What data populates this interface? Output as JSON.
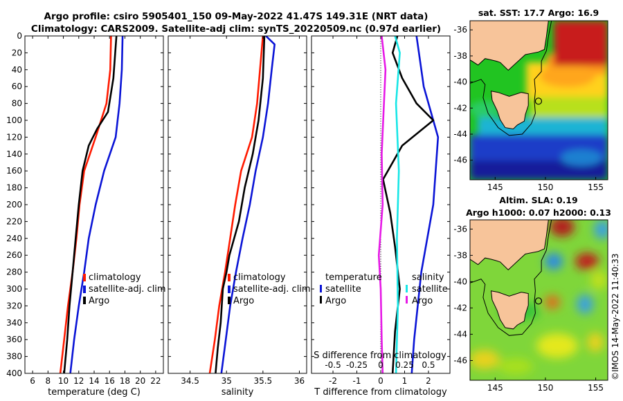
{
  "title": {
    "line1": "Argo profile: csiro 5905401_150 09-May-2022 41.47S 149.31E (NRT data)",
    "line2": "Climatology: CARS2009. Satellite-adj clim: synTS_20220509.nc (0.97d earlier)"
  },
  "colors": {
    "climatology": "#ff1a00",
    "satellite": "#0a14d6",
    "argo": "#000000",
    "salinity_satellite": "#18e6e6",
    "salinity_argo": "#e619e6",
    "land": "#f7c49a"
  },
  "chart_data": [
    {
      "type": "line",
      "name": "temperature-profile",
      "xlabel": "temperature (deg C)",
      "ylabel": "",
      "xlim": [
        5,
        23
      ],
      "ylim": [
        400,
        0
      ],
      "xticks": [
        "6",
        "8",
        "10",
        "12",
        "14",
        "16",
        "18",
        "20",
        "22"
      ],
      "yticks": [
        "0",
        "20",
        "40",
        "60",
        "80",
        "100",
        "120",
        "140",
        "160",
        "180",
        "200",
        "220",
        "240",
        "260",
        "280",
        "300",
        "320",
        "340",
        "360",
        "380",
        "400"
      ],
      "legend": [
        "climatology",
        "satellite-adj. clim",
        "Argo"
      ],
      "series": [
        {
          "name": "climatology",
          "depth": [
            0,
            40,
            80,
            120,
            160,
            200,
            240,
            280,
            320,
            360,
            400
          ],
          "values": [
            16.2,
            16.1,
            15.6,
            14.2,
            12.7,
            12.1,
            11.7,
            11.2,
            10.6,
            10.1,
            9.6
          ]
        },
        {
          "name": "satellite-adj. clim",
          "depth": [
            0,
            40,
            80,
            120,
            160,
            200,
            240,
            280,
            320,
            360,
            400
          ],
          "values": [
            17.7,
            17.6,
            17.3,
            16.8,
            15.3,
            14.2,
            13.3,
            12.7,
            12.0,
            11.4,
            10.9
          ]
        },
        {
          "name": "Argo",
          "depth": [
            0,
            50,
            90,
            110,
            130,
            160,
            200,
            240,
            280,
            320,
            360,
            400
          ],
          "values": [
            16.9,
            16.5,
            15.8,
            14.4,
            13.3,
            12.5,
            12.0,
            11.6,
            11.2,
            10.8,
            10.5,
            10.1
          ]
        }
      ]
    },
    {
      "type": "line",
      "name": "salinity-profile",
      "xlabel": "salinity",
      "xlim": [
        34.2,
        36.1
      ],
      "ylim": [
        400,
        0
      ],
      "xticks": [
        "34.5",
        "35",
        "35.5",
        "36"
      ],
      "legend": [
        "climatology",
        "satellite-adj. clim",
        "Argo"
      ],
      "series": [
        {
          "name": "climatology",
          "depth": [
            0,
            40,
            80,
            120,
            160,
            200,
            240,
            280,
            320,
            360,
            400
          ],
          "values": [
            35.5,
            35.46,
            35.42,
            35.35,
            35.2,
            35.12,
            35.05,
            34.98,
            34.9,
            34.84,
            34.77
          ]
        },
        {
          "name": "satellite-adj. clim",
          "depth": [
            0,
            10,
            40,
            80,
            120,
            160,
            200,
            240,
            280,
            320,
            360,
            400
          ],
          "values": [
            35.54,
            35.66,
            35.62,
            35.57,
            35.5,
            35.4,
            35.32,
            35.22,
            35.13,
            35.05,
            34.99,
            34.93
          ]
        },
        {
          "name": "Argo",
          "depth": [
            0,
            50,
            100,
            140,
            180,
            220,
            260,
            280,
            300,
            340,
            370,
            400
          ],
          "values": [
            35.52,
            35.5,
            35.44,
            35.36,
            35.25,
            35.17,
            35.04,
            35.0,
            34.95,
            34.92,
            34.88,
            34.85
          ]
        }
      ]
    },
    {
      "type": "line",
      "name": "difference-profile",
      "xlabel": "T difference from climatology",
      "xlabel_top": "S difference from climatology",
      "xlim": [
        -2.9,
        2.9
      ],
      "ylim": [
        400,
        0
      ],
      "xticks": [
        "-2",
        "-1",
        "0",
        "1",
        "2"
      ],
      "xticks_top": [
        "-0.5",
        "-0.25",
        "0",
        "0.25",
        "0.5"
      ],
      "legend_temperature_title": "temperature",
      "legend_salinity_title": "salinity",
      "legend_entries": [
        "satellite",
        "Argo"
      ],
      "series": [
        {
          "name": "temperature satellite",
          "depth": [
            0,
            20,
            60,
            120,
            200,
            280,
            360,
            400
          ],
          "values": [
            1.5,
            1.6,
            1.8,
            2.4,
            2.2,
            1.7,
            1.4,
            1.3
          ]
        },
        {
          "name": "temperature Argo",
          "depth": [
            0,
            20,
            50,
            80,
            100,
            130,
            170,
            210,
            250,
            300,
            350,
            400
          ],
          "values": [
            0.7,
            0.5,
            0.9,
            1.5,
            2.2,
            0.9,
            0.1,
            0.4,
            0.6,
            0.8,
            0.6,
            0.5
          ]
        },
        {
          "name": "salinity satellite",
          "depth": [
            0,
            20,
            80,
            160,
            240,
            320,
            400
          ],
          "values": [
            0.15,
            0.2,
            0.16,
            0.19,
            0.17,
            0.18,
            0.16
          ]
        },
        {
          "name": "salinity Argo",
          "depth": [
            0,
            40,
            90,
            140,
            200,
            260,
            300,
            360,
            400
          ],
          "values": [
            0.01,
            0.05,
            0.03,
            0.01,
            0.02,
            -0.02,
            0.0,
            0.01,
            0.02
          ]
        }
      ]
    },
    {
      "type": "heatmap",
      "name": "sst-map",
      "title": "sat. SST: 17.7 Argo: 16.9",
      "xlim": [
        142.5,
        156.2
      ],
      "ylim": [
        -47.5,
        -35.3
      ],
      "xticks": [
        "145",
        "150",
        "155"
      ],
      "yticks": [
        "-36",
        "-38",
        "-40",
        "-42",
        "-44",
        "-46"
      ],
      "argo_position": [
        149.31,
        -41.47
      ]
    },
    {
      "type": "heatmap",
      "name": "sla-map",
      "title": "Altim. SLA: 0.19",
      "subtitle": "Argo h1000: 0.07 h2000: 0.13",
      "xlim": [
        142.5,
        156.2
      ],
      "ylim": [
        -47.5,
        -35.3
      ],
      "xticks": [
        "145",
        "150",
        "155"
      ],
      "yticks": [
        "-36",
        "-38",
        "-40",
        "-42",
        "-44",
        "-46"
      ],
      "argo_position": [
        149.31,
        -41.47
      ]
    }
  ],
  "credit": "©IMOS 14-May-2022 11:40:33"
}
